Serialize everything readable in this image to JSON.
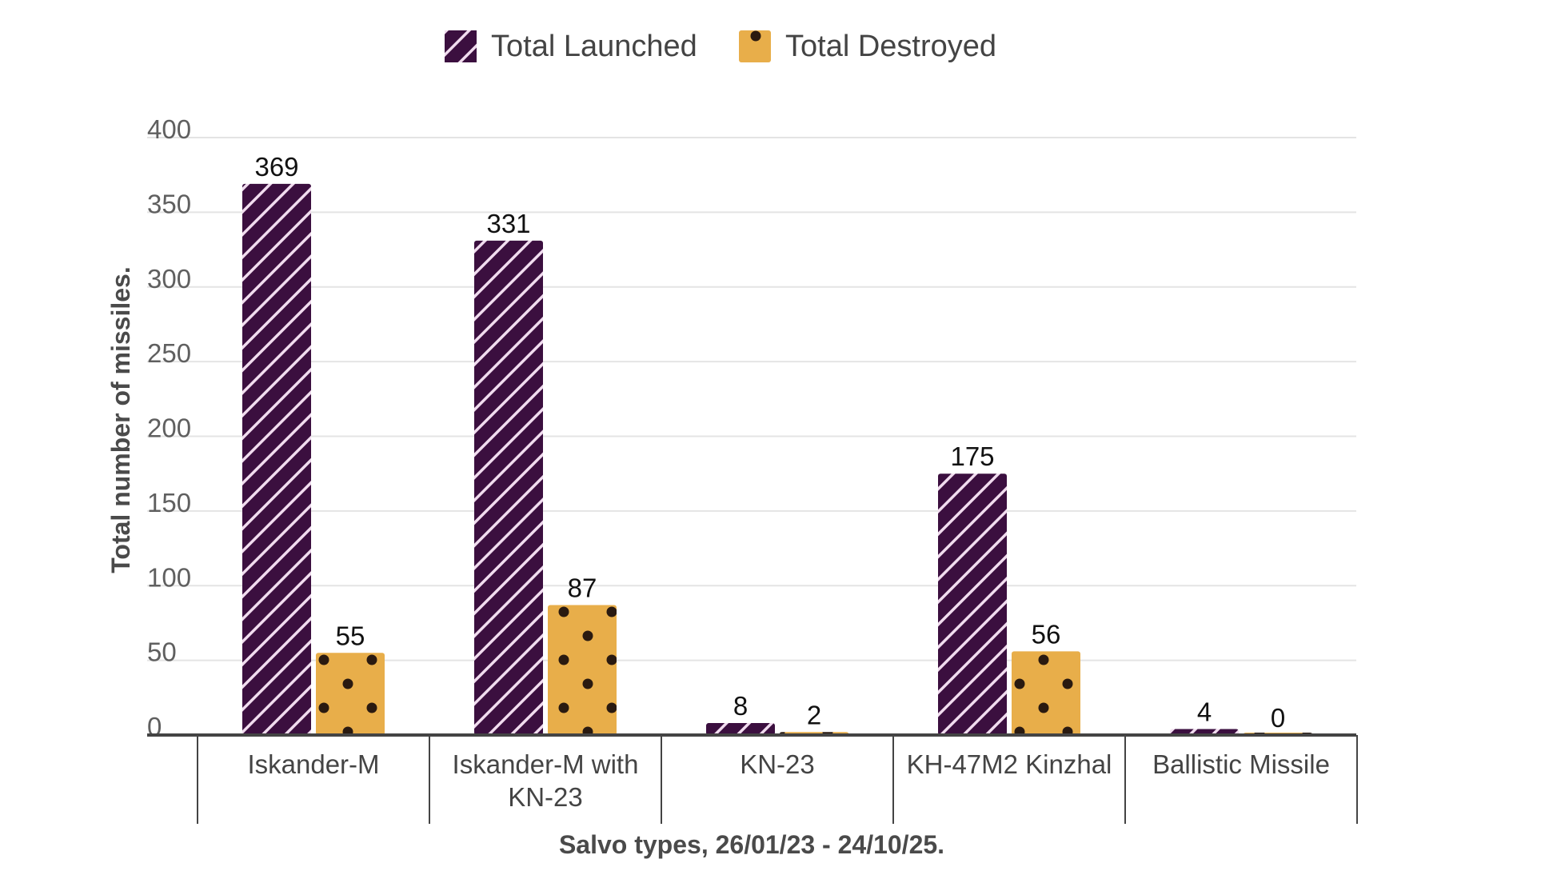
{
  "chart_data": {
    "type": "bar",
    "title": "",
    "categories": [
      [
        "Iskander-M"
      ],
      [
        "Iskander-M with",
        "KN-23"
      ],
      [
        "KN-23"
      ],
      [
        "KH-47M2 Kinzhal"
      ],
      [
        "Ballistic Missile"
      ]
    ],
    "series": [
      {
        "name": "Total Launched",
        "values": [
          369,
          331,
          8,
          175,
          4
        ],
        "color": "#3b0f3f",
        "pattern": "diagonal-stripes"
      },
      {
        "name": "Total Destroyed",
        "values": [
          55,
          87,
          2,
          56,
          0
        ],
        "color": "#e8ae4a",
        "pattern": "dots"
      }
    ],
    "xlabel": "Salvo types, 26/01/23 - 24/10/25.",
    "ylabel": "Total number of missiles.",
    "yticks": [
      0,
      50,
      100,
      150,
      200,
      250,
      300,
      350,
      400
    ],
    "ylim": [
      0,
      400
    ],
    "grid": true,
    "legend_position": "top-center"
  }
}
